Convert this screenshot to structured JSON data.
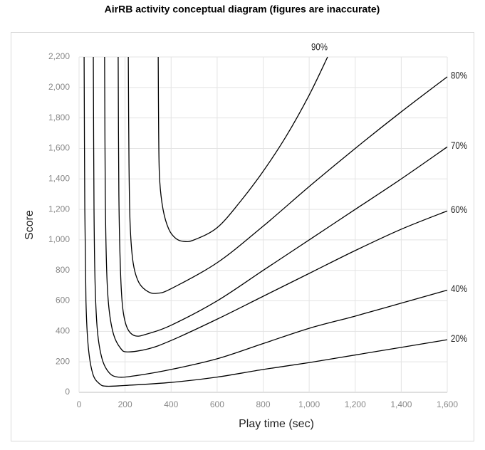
{
  "chart_data": {
    "type": "line",
    "title": "AirRB activity conceptual diagram (figures are inaccurate)",
    "x_label": "Play time (sec)",
    "y_label": "Score",
    "xlim": [
      0,
      1600
    ],
    "xticks": [
      0,
      200,
      400,
      600,
      800,
      {
        "value": 1000,
        "label": "1,000"
      },
      {
        "value": 1200,
        "label": "1,200"
      },
      {
        "value": 1400,
        "label": "1,400"
      },
      {
        "value": 1600,
        "label": "1,600"
      }
    ],
    "ylim": [
      0,
      2200
    ],
    "yticks": [
      0,
      200,
      400,
      600,
      800,
      {
        "value": 1000,
        "label": "1,000"
      },
      {
        "value": 1200,
        "label": "1,200"
      },
      {
        "value": 1400,
        "label": "1,400"
      },
      {
        "value": 1600,
        "label": "1,600"
      },
      {
        "value": 1800,
        "label": "1,800"
      },
      {
        "value": 2000,
        "label": "2,000"
      },
      {
        "value": 2200,
        "label": "2,200"
      }
    ],
    "grid": true,
    "series": [
      {
        "name": "20%",
        "color": "#000000",
        "x": [
          22,
          25,
          30,
          40,
          60,
          90,
          120,
          200,
          400,
          600,
          800,
          1000,
          1200,
          1400,
          1600
        ],
        "values": [
          2200,
          1200,
          600,
          300,
          120,
          55,
          40,
          45,
          65,
          100,
          150,
          195,
          245,
          295,
          345
        ]
      },
      {
        "name": "40%",
        "color": "#000000",
        "x": [
          62,
          65,
          70,
          80,
          100,
          130,
          170,
          250,
          400,
          600,
          800,
          1000,
          1200,
          1400,
          1600
        ],
        "values": [
          2200,
          1200,
          700,
          400,
          220,
          130,
          100,
          110,
          150,
          220,
          320,
          420,
          500,
          585,
          670
        ]
      },
      {
        "name": "60%",
        "color": "#000000",
        "x": [
          111,
          114,
          120,
          130,
          150,
          180,
          210,
          300,
          400,
          600,
          800,
          1000,
          1200,
          1400,
          1600
        ],
        "values": [
          2200,
          1300,
          800,
          550,
          380,
          290,
          265,
          285,
          340,
          480,
          630,
          780,
          930,
          1070,
          1190
        ]
      },
      {
        "name": "70%",
        "color": "#000000",
        "x": [
          170,
          173,
          180,
          190,
          210,
          245,
          300,
          400,
          600,
          800,
          1000,
          1200,
          1400,
          1600
        ],
        "values": [
          2200,
          1300,
          800,
          550,
          420,
          370,
          385,
          440,
          600,
          800,
          1000,
          1200,
          1400,
          1610
        ]
      },
      {
        "name": "80%",
        "color": "#000000",
        "x": [
          214,
          217,
          222,
          235,
          260,
          300,
          340,
          400,
          600,
          800,
          1000,
          1200,
          1400,
          1600
        ],
        "values": [
          2200,
          1500,
          1100,
          850,
          720,
          660,
          650,
          680,
          850,
          1090,
          1350,
          1600,
          1840,
          2070
        ]
      },
      {
        "name": "90%",
        "color": "#000000",
        "x": [
          344,
          346,
          350,
          365,
          390,
          420,
          455,
          500,
          600,
          700,
          800,
          900,
          1000,
          1080
        ],
        "values": [
          2200,
          1700,
          1400,
          1200,
          1070,
          1010,
          990,
          1000,
          1080,
          1250,
          1450,
          1680,
          1950,
          2200
        ]
      }
    ]
  }
}
